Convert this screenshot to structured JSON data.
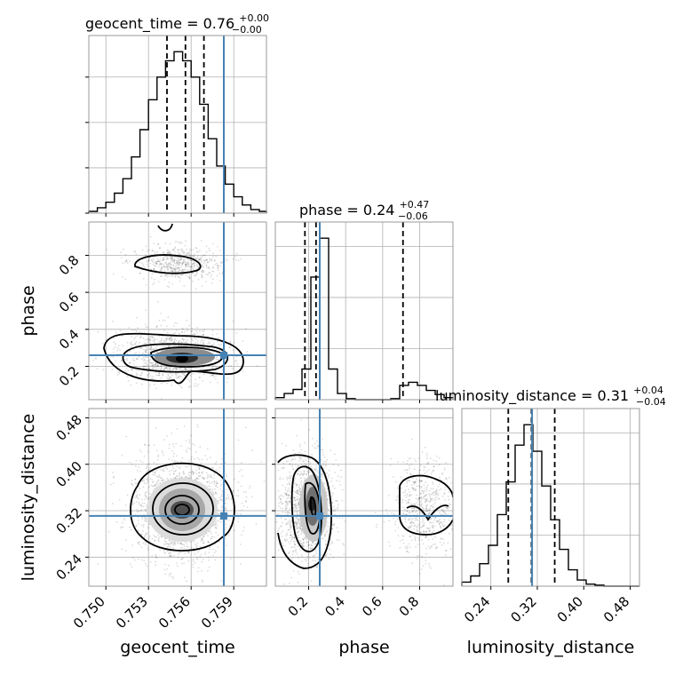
{
  "chart_data": {
    "type": "corner",
    "parameters": [
      "geocent_time",
      "phase",
      "luminosity_distance"
    ],
    "truths": {
      "geocent_time": 0.7583,
      "phase": 0.26,
      "luminosity_distance": 0.311
    },
    "titles": [
      {
        "param": "geocent_time",
        "base": "geocent_time = 0.76",
        "plus": "+0.00",
        "minus": "−0.00"
      },
      {
        "param": "phase",
        "base": "phase = 0.24",
        "plus": "+0.47",
        "minus": "−0.06"
      },
      {
        "param": "luminosity_distance",
        "base": "luminosity_distance = 0.31",
        "plus": "+0.04",
        "minus": "−0.04"
      }
    ],
    "axes": {
      "geocent_time": {
        "range": [
          0.7488,
          0.7613
        ],
        "ticks": [
          0.75,
          0.753,
          0.756,
          0.759
        ],
        "tick_labels": [
          "0.750",
          "0.753",
          "0.756",
          "0.759"
        ]
      },
      "phase": {
        "range": [
          0.02,
          0.98
        ],
        "ticks": [
          0.2,
          0.4,
          0.6,
          0.8
        ],
        "tick_labels": [
          "0.2",
          "0.4",
          "0.6",
          "0.8"
        ]
      },
      "luminosity_distance": {
        "range": [
          0.19,
          0.496
        ],
        "ticks": [
          0.24,
          0.32,
          0.4,
          0.48
        ],
        "tick_labels": [
          "0.24",
          "0.32",
          "0.40",
          "0.48"
        ]
      }
    },
    "histograms": {
      "geocent_time": {
        "edges": [
          0.7488,
          0.7494,
          0.75,
          0.7506,
          0.7512,
          0.7518,
          0.7524,
          0.753,
          0.7536,
          0.7542,
          0.7548,
          0.7554,
          0.756,
          0.7566,
          0.7572,
          0.7578,
          0.7584,
          0.759,
          0.7596,
          0.7602,
          0.7608,
          0.7613
        ],
        "counts": [
          2,
          6,
          12,
          22,
          38,
          62,
          92,
          125,
          150,
          168,
          178,
          168,
          150,
          120,
          82,
          52,
          32,
          18,
          9,
          4,
          2
        ],
        "quantiles": [
          0.7543,
          0.7556,
          0.7569
        ]
      },
      "phase": {
        "edges": [
          0.02,
          0.068,
          0.116,
          0.164,
          0.212,
          0.26,
          0.308,
          0.356,
          0.404,
          0.452,
          0.5,
          0.548,
          0.596,
          0.644,
          0.692,
          0.74,
          0.788,
          0.836,
          0.884,
          0.932,
          0.98
        ],
        "counts": [
          2,
          6,
          10,
          30,
          120,
          158,
          30,
          6,
          1,
          0,
          0,
          0,
          0,
          1,
          14,
          17,
          14,
          9,
          5,
          2
        ],
        "quantiles": [
          0.18,
          0.24,
          0.71
        ]
      },
      "luminosity_distance": {
        "edges": [
          0.19,
          0.2053,
          0.2206,
          0.2359,
          0.2512,
          0.2665,
          0.2818,
          0.2971,
          0.3124,
          0.3277,
          0.343,
          0.3583,
          0.3736,
          0.3889,
          0.4042,
          0.4195,
          0.4348,
          0.4501,
          0.4654,
          0.4807,
          0.496
        ],
        "counts": [
          4,
          10,
          22,
          40,
          70,
          102,
          138,
          158,
          132,
          98,
          65,
          36,
          16,
          6,
          2,
          1,
          0,
          0,
          0,
          0
        ],
        "quantiles": [
          0.27,
          0.31,
          0.35
        ]
      }
    }
  }
}
